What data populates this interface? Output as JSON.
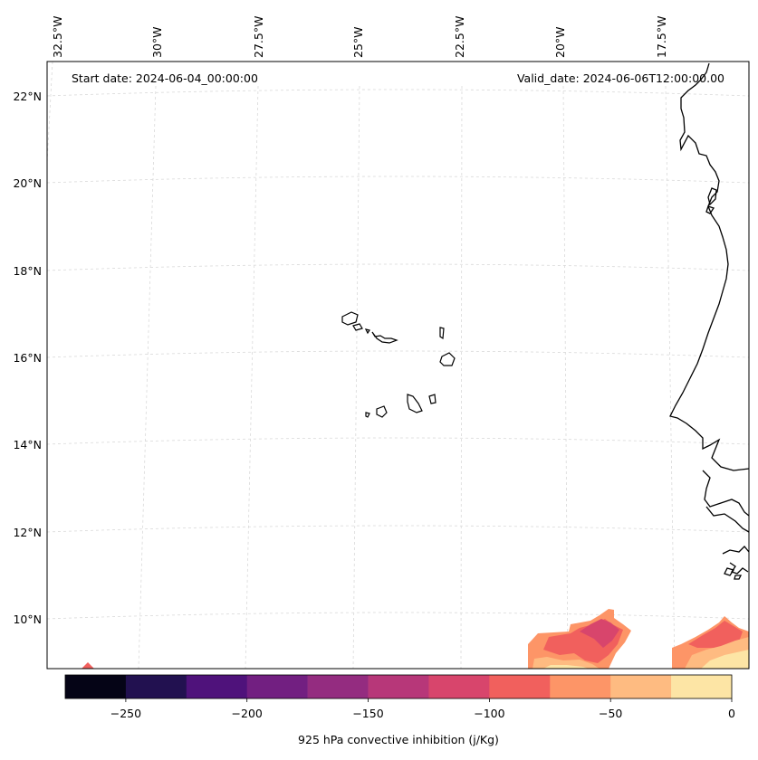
{
  "map": {
    "start_label": "Start date: 2024-06-04_00:00:00",
    "valid_label": "Valid_date: 2024-06-06T12:00:00.00",
    "lon_labels": [
      "32.5°W",
      "30°W",
      "27.5°W",
      "25°W",
      "22.5°W",
      "20°W",
      "17.5°W"
    ],
    "lat_labels": [
      "22°N",
      "20°N",
      "18°N",
      "16°N",
      "14°N",
      "12°N",
      "10°N"
    ]
  },
  "colorbar": {
    "label": "925 hPa convective inhibition (j/Kg)",
    "ticks": [
      "−250",
      "−200",
      "−150",
      "−100",
      "−50",
      "0"
    ],
    "levels": [
      -275,
      -250,
      -225,
      -200,
      -175,
      -150,
      -125,
      -100,
      -75,
      -50,
      -25,
      0
    ],
    "colors": [
      "#050416",
      "#221150",
      "#4f127b",
      "#721f81",
      "#942c80",
      "#b73779",
      "#d8456c",
      "#f1605d",
      "#fd9567",
      "#febb81",
      "#fde5a5"
    ]
  },
  "colors": {
    "coastline": "#000000",
    "gridline": "#d9d9d9",
    "cin_dark": "#d8456c",
    "cin_mid": "#f1605d",
    "cin_light": "#fd9567",
    "cin_pale": "#febb81",
    "cin_palest": "#fde5a5"
  }
}
